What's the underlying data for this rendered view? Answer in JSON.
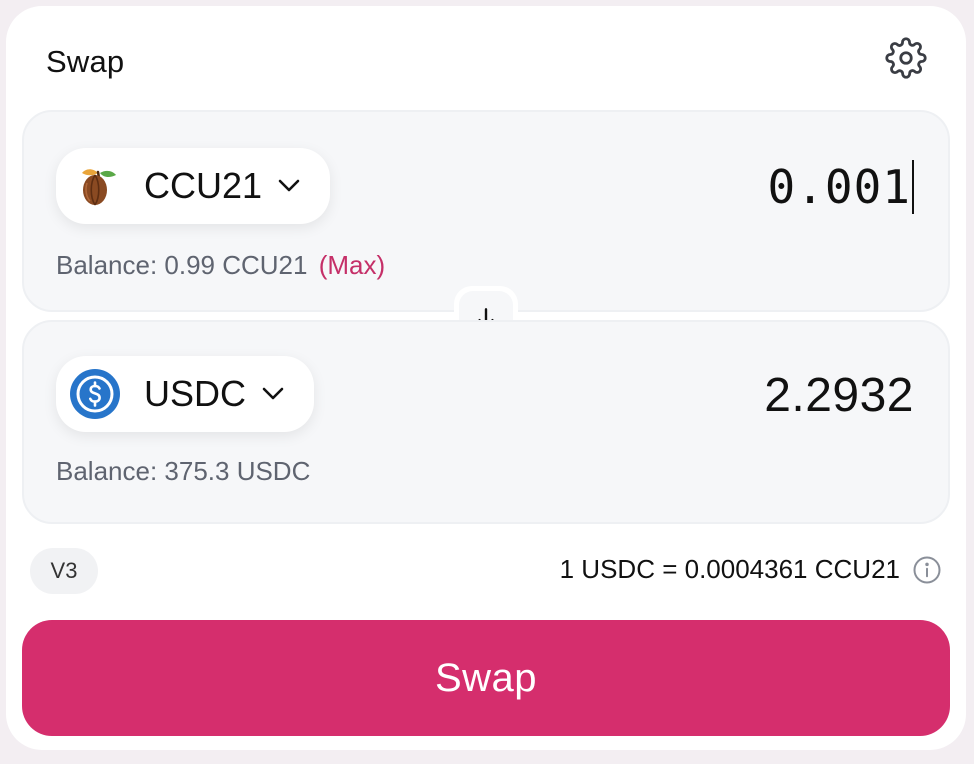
{
  "header": {
    "title": "Swap",
    "settings_icon": "gear-icon"
  },
  "from": {
    "token_symbol": "CCU21",
    "token_icon": "cocoa-pod-icon",
    "amount": "0.001",
    "balance_label": "Balance: 0.99 CCU21",
    "max_label": "(Max)"
  },
  "switch": {
    "icon": "arrow-down-icon"
  },
  "to": {
    "token_symbol": "USDC",
    "token_icon": "usdc-icon",
    "amount": "2.2932",
    "balance_label": "Balance: 375.3 USDC"
  },
  "route": {
    "version": "V3"
  },
  "rate": {
    "text": "1 USDC = 0.0004361 CCU21",
    "icon": "info-icon"
  },
  "action": {
    "label": "Swap"
  },
  "colors": {
    "accent": "#d52e6d",
    "max_link": "#c52f68",
    "panel_bg": "#f6f7f9",
    "usdc_blue": "#2775ca"
  }
}
